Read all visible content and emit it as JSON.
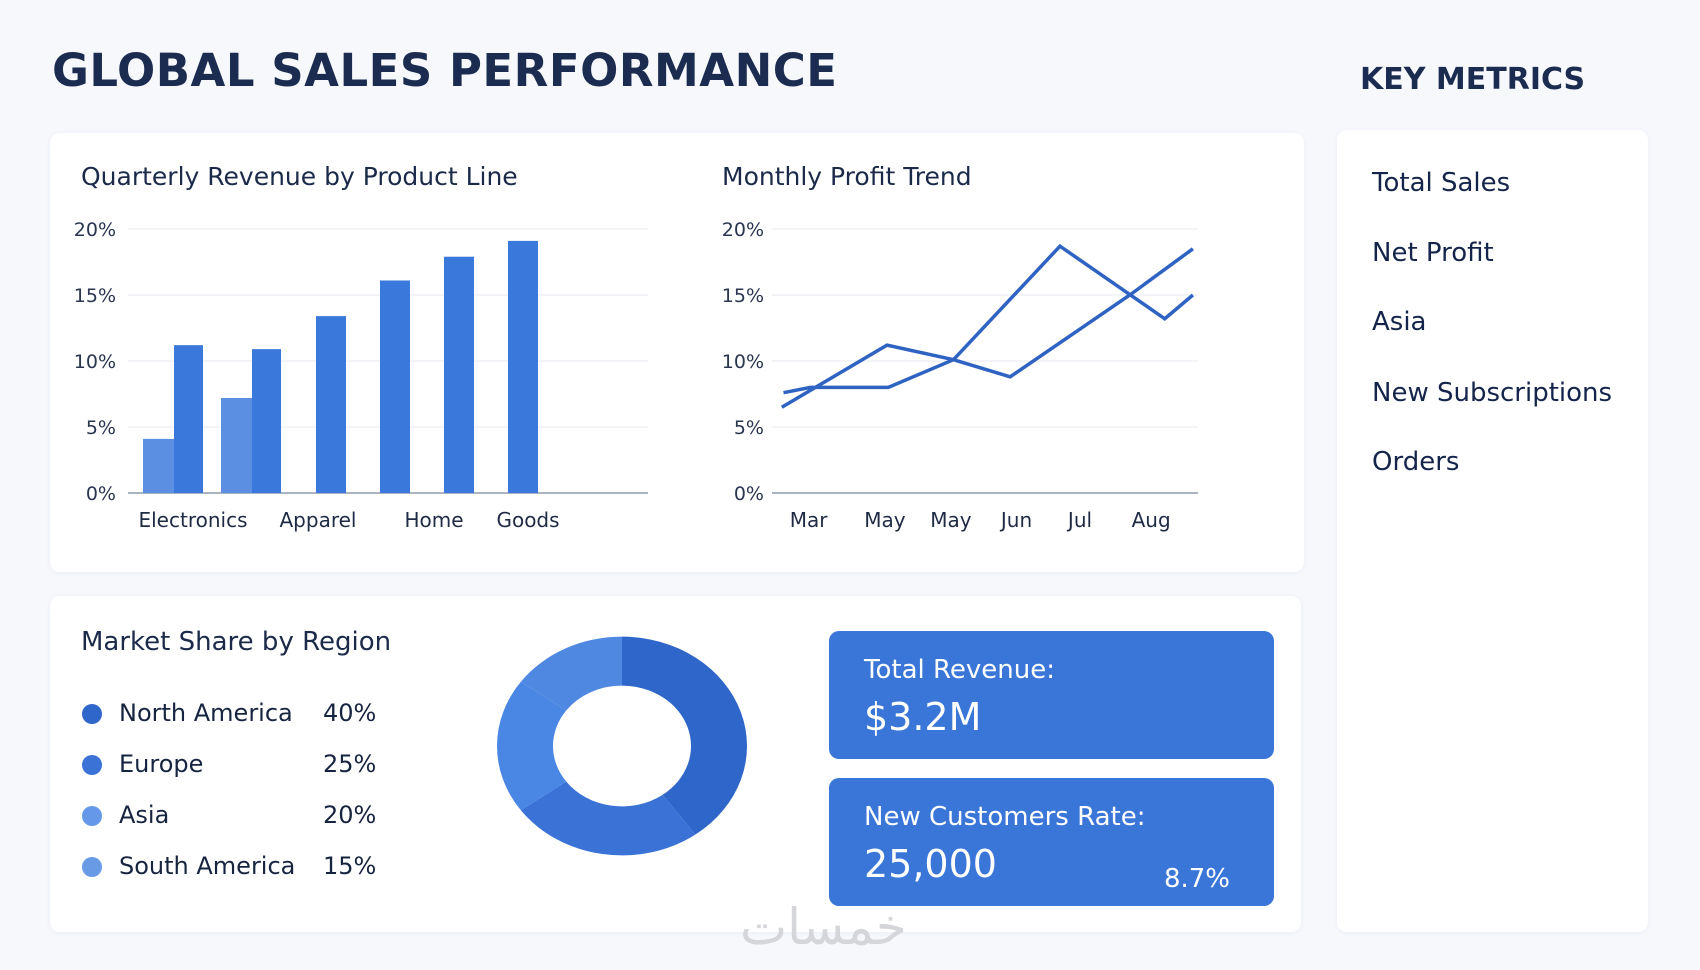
{
  "header": {
    "title": "GLOBAL SALES PERFORMANCE"
  },
  "key_metrics": {
    "title": "KEY METRICS",
    "items": [
      "Total Sales",
      "Net Profit",
      "Asia",
      "New Subscriptions",
      "Orders"
    ]
  },
  "chart_data": [
    {
      "type": "bar",
      "title": "Quarterly Revenue by Product Line",
      "category_labels": [
        "Electronics",
        "Apparel",
        "Home",
        "Goods"
      ],
      "bars": [
        {
          "group": "Electronics",
          "shade": "light",
          "value": 4.1
        },
        {
          "group": "Electronics",
          "shade": "dark",
          "value": 11.2
        },
        {
          "group": "Apparel",
          "shade": "light",
          "value": 7.2
        },
        {
          "group": "Apparel",
          "shade": "dark",
          "value": 10.9
        },
        {
          "group": "Apparel",
          "shade": "dark",
          "value": 13.4
        },
        {
          "group": "Home",
          "shade": "dark",
          "value": 16.1
        },
        {
          "group": "Home",
          "shade": "dark",
          "value": 17.9
        },
        {
          "group": "Goods",
          "shade": "dark",
          "value": 19.1
        }
      ],
      "yticks": [
        "0%",
        "5%",
        "10%",
        "15%",
        "20%"
      ],
      "ylim": [
        0,
        20
      ],
      "grid": true
    },
    {
      "type": "line",
      "title": "Monthly Profit Trend",
      "xticks": [
        "Mar",
        "May",
        "May",
        "Jun",
        "Jul",
        "Aug"
      ],
      "xtick_positions": [
        0.86,
        2.65,
        4.2,
        5.74,
        7.23,
        8.9
      ],
      "xlim": [
        0,
        10
      ],
      "ylim": [
        0,
        20
      ],
      "yticks": [
        "0%",
        "5%",
        "10%",
        "15%",
        "20%"
      ],
      "series": [
        {
          "name": "Series 1",
          "points": [
            [
              0.23,
              6.5
            ],
            [
              2.7,
              11.2
            ],
            [
              4.26,
              10.1
            ],
            [
              5.59,
              8.8
            ],
            [
              8.4,
              15
            ],
            [
              9.88,
              18.5
            ]
          ]
        },
        {
          "name": "Series 2",
          "points": [
            [
              0.27,
              7.6
            ],
            [
              0.9,
              8
            ],
            [
              2.73,
              8
            ],
            [
              4.26,
              10.1
            ],
            [
              6.76,
              18.7
            ],
            [
              9.22,
              13.2
            ],
            [
              9.88,
              15
            ]
          ]
        }
      ],
      "grid": true
    },
    {
      "type": "pie",
      "title": "Market Share by Region",
      "slices": [
        {
          "label": "North America",
          "value": 40,
          "pct": "40%",
          "color": "#2f66c9"
        },
        {
          "label": "Europe",
          "value": 25,
          "pct": "25%",
          "color": "#3a72d6"
        },
        {
          "label": "Asia",
          "value": 20,
          "pct": "20%",
          "color": "#4a86e4"
        },
        {
          "label": "South America",
          "value": 15,
          "pct": "15%",
          "color": "#4f88e0"
        }
      ]
    }
  ],
  "stats": [
    {
      "label": "Total Revenue:",
      "value": "$3.2M"
    },
    {
      "label": "New Customers Rate:",
      "value": "25,000",
      "rate": "8.7%"
    }
  ],
  "watermark": "خمسات",
  "colors": {
    "bar_dark": "#3a78dc",
    "bar_light": "#5a8fe2",
    "line": "#2f63c2",
    "card": "#3a76d8"
  }
}
